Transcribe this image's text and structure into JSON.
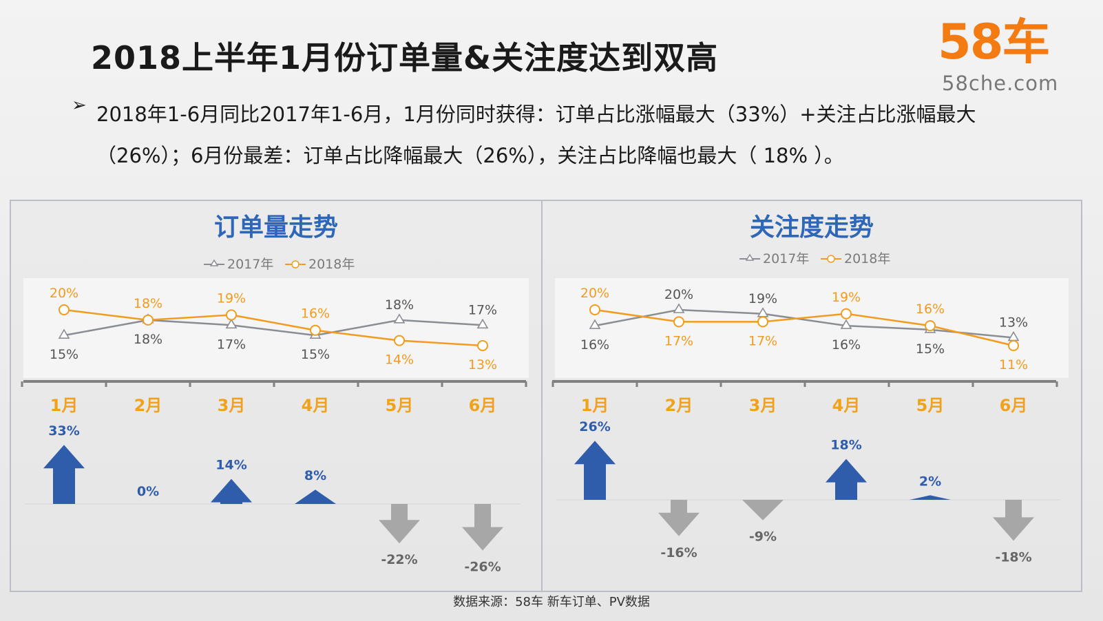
{
  "header": {
    "title": "2018上半年1月份订单量&关注度达到双高",
    "bullet_arrow": "➢",
    "bullet": "2018年1-6月同比2017年1-6月，1月份同时获得：订单占比涨幅最大（33%）+关注占比涨幅最大（26%）；6月份最差：订单占比降幅最大（26%），关注占比降幅也最大（ 18% ）。"
  },
  "logo": {
    "main": "58车",
    "sub": "58che.com"
  },
  "source": "数据来源：58车 新车订单、PV数据",
  "colors": {
    "orange": "#f29b1e",
    "gray": "#8a8d93",
    "blue": "#2f5cab",
    "month": "#f0a21a",
    "title_blue": "#2f67b8",
    "down_arrow": "#a7a7a7",
    "logo_orange": "#f47a12"
  },
  "chart_data": [
    {
      "type": "line",
      "title": "订单量走势",
      "categories": [
        "1月",
        "2月",
        "3月",
        "4月",
        "5月",
        "6月"
      ],
      "series": [
        {
          "name": "2017年",
          "values": [
            15,
            18,
            17,
            15,
            18,
            17
          ],
          "labels": [
            "15%",
            "18%",
            "17%",
            "15%",
            "18%",
            "17%"
          ]
        },
        {
          "name": "2018年",
          "values": [
            20,
            18,
            19,
            16,
            14,
            13
          ],
          "labels": [
            "20%",
            "18%",
            "19%",
            "16%",
            "14%",
            "13%"
          ]
        }
      ],
      "change": {
        "values": [
          33,
          0,
          14,
          8,
          -22,
          -26
        ],
        "labels": [
          "33%",
          "0%",
          "14%",
          "8%",
          "-22%",
          "-26%"
        ]
      },
      "legend_position": "top-center"
    },
    {
      "type": "line",
      "title": "关注度走势",
      "categories": [
        "1月",
        "2月",
        "3月",
        "4月",
        "5月",
        "6月"
      ],
      "series": [
        {
          "name": "2017年",
          "values": [
            16,
            20,
            19,
            16,
            15,
            13
          ],
          "labels": [
            "16%",
            "20%",
            "19%",
            "16%",
            "15%",
            "13%"
          ]
        },
        {
          "name": "2018年",
          "values": [
            20,
            17,
            17,
            19,
            16,
            11
          ],
          "labels": [
            "20%",
            "17%",
            "17%",
            "19%",
            "16%",
            "11%"
          ]
        }
      ],
      "change": {
        "values": [
          26,
          -16,
          -9,
          18,
          2,
          -18
        ],
        "labels": [
          "26%",
          "-16%",
          "-9%",
          "18%",
          "2%",
          "-18%"
        ]
      },
      "legend_position": "top-center"
    }
  ]
}
